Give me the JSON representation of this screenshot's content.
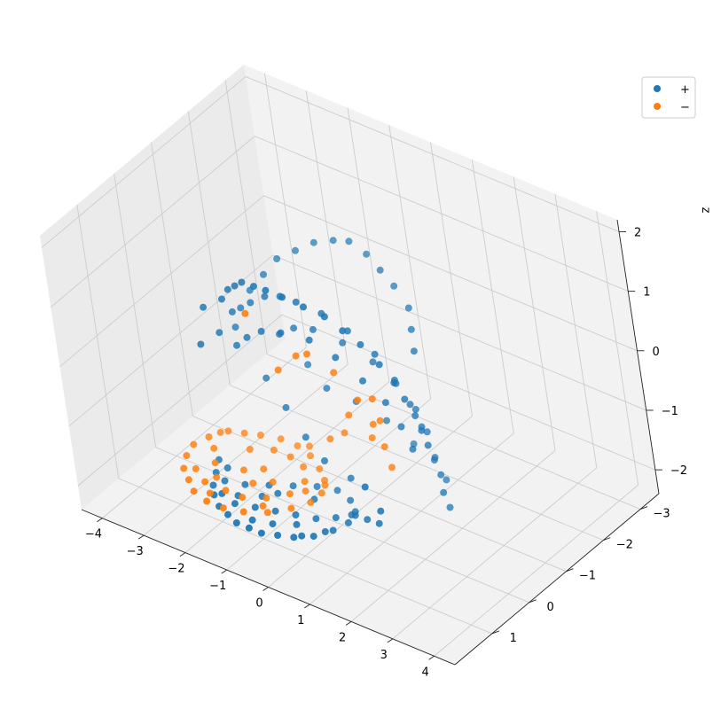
{
  "chart_data": {
    "type": "scatter",
    "projection": "3d",
    "title": "",
    "xlabel": "",
    "ylabel": "",
    "zlabel": "z",
    "xlim": [
      -4.5,
      4.5
    ],
    "ylim": [
      -3.5,
      2
    ],
    "zlim": [
      -2.4,
      2.2
    ],
    "x_ticks": [
      -4,
      -3,
      -2,
      -1,
      0,
      1,
      2,
      3,
      4
    ],
    "y_ticks": [
      -3,
      -2,
      -1,
      0,
      1
    ],
    "z_ticks": [
      -2,
      -1,
      0,
      1,
      2
    ],
    "x_tick_labels": [
      "−4",
      "−3",
      "−2",
      "−1",
      "0",
      "1",
      "2",
      "3",
      "4"
    ],
    "y_tick_labels": [
      "−3",
      "−2",
      "−1",
      "0",
      "1"
    ],
    "z_tick_labels": [
      "−2",
      "−1",
      "0",
      "1",
      "2"
    ],
    "grid": true,
    "legend_position": "top-right",
    "series": [
      {
        "name": "+",
        "color": "#1f77b4",
        "points": [
          [
            -2.6,
            0.3,
            -1.9
          ],
          [
            -2.4,
            0.6,
            -1.9
          ],
          [
            -2.2,
            0.9,
            -1.9
          ],
          [
            -2.0,
            1.1,
            -1.9
          ],
          [
            -1.7,
            1.3,
            -1.9
          ],
          [
            -1.4,
            1.4,
            -1.9
          ],
          [
            -1.1,
            1.5,
            -1.9
          ],
          [
            -0.8,
            1.5,
            -1.9
          ],
          [
            -0.5,
            1.5,
            -1.9
          ],
          [
            -0.2,
            1.4,
            -1.9
          ],
          [
            0.1,
            1.3,
            -1.9
          ],
          [
            0.4,
            1.1,
            -1.9
          ],
          [
            0.6,
            0.8,
            -1.9
          ],
          [
            0.7,
            0.5,
            -1.9
          ],
          [
            0.6,
            0.2,
            -1.9
          ],
          [
            0.3,
            0.0,
            -1.9
          ],
          [
            -0.1,
            -0.1,
            -1.9
          ],
          [
            -0.5,
            0.0,
            -1.9
          ],
          [
            -0.9,
            0.2,
            -1.9
          ],
          [
            -1.3,
            0.4,
            -1.9
          ],
          [
            -1.7,
            0.6,
            -1.9
          ],
          [
            -2.1,
            0.7,
            -1.9
          ],
          [
            -1.9,
            1.0,
            -1.9
          ],
          [
            -1.5,
            1.1,
            -1.9
          ],
          [
            -1.1,
            1.0,
            -1.9
          ],
          [
            -0.7,
            0.9,
            -1.9
          ],
          [
            -0.3,
            0.8,
            -1.9
          ],
          [
            0.1,
            0.7,
            -1.9
          ],
          [
            0.4,
            0.5,
            -1.9
          ],
          [
            -0.5,
            1.2,
            -1.9
          ],
          [
            -1.2,
            0.7,
            -1.9
          ],
          [
            -2.3,
            0.4,
            -1.9
          ],
          [
            0.5,
            0.9,
            -1.9
          ],
          [
            0.2,
            1.2,
            -1.9
          ],
          [
            -0.9,
            1.3,
            -1.9
          ],
          [
            -1.6,
            0.9,
            -1.9
          ],
          [
            -0.3,
            0.3,
            -1.9
          ],
          [
            0.6,
            0.3,
            -1.9
          ],
          [
            -1.0,
            0.5,
            -1.9
          ],
          [
            -0.1,
            1.0,
            -1.9
          ],
          [
            -2.2,
            0.2,
            0.3
          ],
          [
            -2.4,
            0.5,
            0.2
          ],
          [
            -2.0,
            0.0,
            0.6
          ],
          [
            -2.3,
            0.4,
            0.8
          ],
          [
            -1.9,
            0.3,
            1.0
          ],
          [
            -1.6,
            0.4,
            1.3
          ],
          [
            -1.3,
            0.5,
            1.5
          ],
          [
            -1.0,
            0.6,
            1.7
          ],
          [
            -0.6,
            0.7,
            1.8
          ],
          [
            -0.2,
            0.8,
            1.9
          ],
          [
            0.2,
            0.8,
            1.9
          ],
          [
            0.6,
            0.7,
            1.8
          ],
          [
            1.0,
            0.6,
            1.7
          ],
          [
            1.3,
            0.5,
            1.5
          ],
          [
            1.6,
            0.4,
            1.3
          ],
          [
            1.9,
            0.3,
            1.0
          ],
          [
            2.1,
            0.2,
            0.7
          ],
          [
            2.2,
            0.1,
            0.4
          ],
          [
            2.3,
            0.0,
            0.1
          ],
          [
            2.3,
            -0.1,
            -0.2
          ],
          [
            2.3,
            -0.2,
            -0.5
          ],
          [
            2.3,
            -0.3,
            -0.8
          ],
          [
            2.3,
            -0.4,
            -1.1
          ],
          [
            2.3,
            -0.4,
            -1.4
          ],
          [
            2.3,
            -0.5,
            -1.7
          ],
          [
            2.2,
            -0.3,
            1.0
          ],
          [
            2.0,
            -0.5,
            1.2
          ],
          [
            1.8,
            -0.7,
            1.4
          ],
          [
            1.4,
            -0.8,
            1.6
          ],
          [
            1.0,
            -0.9,
            1.7
          ],
          [
            0.6,
            -1.0,
            1.8
          ],
          [
            0.2,
            -1.0,
            1.9
          ],
          [
            -0.2,
            -1.0,
            1.8
          ],
          [
            -0.6,
            -0.9,
            1.7
          ],
          [
            -1.0,
            -0.8,
            1.5
          ],
          [
            -1.4,
            -0.7,
            1.3
          ],
          [
            -1.7,
            -0.6,
            1.0
          ],
          [
            -2.0,
            -0.5,
            0.7
          ],
          [
            -2.2,
            -0.4,
            0.4
          ],
          [
            -2.3,
            -0.3,
            0.1
          ],
          [
            -1.5,
            0.0,
            0.9
          ],
          [
            -1.0,
            0.1,
            1.2
          ],
          [
            -0.5,
            0.2,
            1.4
          ],
          [
            0.0,
            0.3,
            1.5
          ],
          [
            0.5,
            0.2,
            1.4
          ],
          [
            1.0,
            0.1,
            1.2
          ],
          [
            1.5,
            0.0,
            0.9
          ],
          [
            1.8,
            -0.1,
            0.5
          ],
          [
            2.0,
            -0.2,
            0.1
          ],
          [
            2.1,
            -0.3,
            -0.3
          ],
          [
            -1.8,
            0.2,
            0.2
          ],
          [
            -1.4,
            0.3,
            0.5
          ],
          [
            -0.9,
            0.4,
            0.8
          ],
          [
            -0.3,
            0.5,
            1.0
          ],
          [
            0.3,
            0.4,
            1.0
          ],
          [
            0.8,
            0.3,
            0.8
          ],
          [
            1.3,
            0.2,
            0.5
          ],
          [
            1.7,
            0.1,
            0.2
          ],
          [
            1.9,
            0.0,
            -0.2
          ],
          [
            2.0,
            -0.1,
            -0.6
          ],
          [
            -1.2,
            -0.3,
            0.3
          ],
          [
            -0.7,
            -0.2,
            0.6
          ],
          [
            -0.1,
            -0.1,
            0.8
          ],
          [
            0.5,
            -0.2,
            0.7
          ],
          [
            1.1,
            -0.3,
            0.5
          ],
          [
            1.5,
            -0.4,
            0.2
          ],
          [
            1.8,
            -0.5,
            -0.2
          ],
          [
            1.9,
            -0.6,
            -0.6
          ],
          [
            2.0,
            -0.6,
            -1.0
          ],
          [
            2.1,
            -0.7,
            -1.4
          ],
          [
            1.6,
            0.6,
            -1.6
          ],
          [
            1.2,
            0.5,
            -1.7
          ],
          [
            0.8,
            0.4,
            -1.8
          ],
          [
            1.9,
            0.8,
            -1.2
          ],
          [
            1.7,
            0.9,
            -0.8
          ],
          [
            -0.8,
            -0.5,
            -0.2
          ],
          [
            -0.3,
            -0.4,
            -0.4
          ],
          [
            0.3,
            -0.5,
            -0.5
          ],
          [
            0.9,
            -0.6,
            -0.7
          ],
          [
            1.4,
            -0.7,
            -1.0
          ],
          [
            -1.6,
            -0.2,
            -0.5
          ],
          [
            -1.1,
            -0.1,
            -0.8
          ],
          [
            -0.6,
            0.0,
            -1.1
          ],
          [
            -0.1,
            0.1,
            -1.3
          ],
          [
            0.4,
            0.0,
            -1.5
          ]
        ]
      },
      {
        "name": "−",
        "color": "#ff7f0e",
        "points": [
          [
            -3.0,
            -0.4,
            -1.9
          ],
          [
            -3.2,
            -0.1,
            -1.9
          ],
          [
            -3.3,
            0.2,
            -1.9
          ],
          [
            -3.2,
            0.5,
            -1.9
          ],
          [
            -3.0,
            0.8,
            -1.9
          ],
          [
            -2.7,
            1.0,
            -1.9
          ],
          [
            -2.4,
            1.2,
            -1.9
          ],
          [
            -2.0,
            1.3,
            -1.9
          ],
          [
            -1.6,
            1.3,
            -1.9
          ],
          [
            -1.2,
            1.2,
            -1.9
          ],
          [
            -0.8,
            1.0,
            -1.9
          ],
          [
            -0.5,
            0.7,
            -1.9
          ],
          [
            -0.3,
            0.4,
            -1.9
          ],
          [
            -0.3,
            0.1,
            -1.9
          ],
          [
            -0.5,
            -0.2,
            -1.9
          ],
          [
            -0.8,
            -0.4,
            -1.9
          ],
          [
            -1.2,
            -0.6,
            -1.9
          ],
          [
            -1.6,
            -0.7,
            -1.9
          ],
          [
            -2.0,
            -0.7,
            -1.9
          ],
          [
            -2.4,
            -0.6,
            -1.9
          ],
          [
            -2.7,
            -0.5,
            -1.9
          ],
          [
            -2.9,
            0.1,
            -1.9
          ],
          [
            -2.6,
            0.4,
            -1.9
          ],
          [
            -2.3,
            0.7,
            -1.9
          ],
          [
            -1.9,
            0.9,
            -1.9
          ],
          [
            -1.5,
            0.9,
            -1.9
          ],
          [
            -1.1,
            0.7,
            -1.9
          ],
          [
            -0.8,
            0.4,
            -1.9
          ],
          [
            -0.8,
            0.0,
            -1.9
          ],
          [
            -1.1,
            -0.3,
            -1.9
          ],
          [
            -1.5,
            -0.4,
            -1.9
          ],
          [
            -1.9,
            -0.4,
            -1.9
          ],
          [
            -2.3,
            -0.2,
            -1.9
          ],
          [
            -2.0,
            0.3,
            -1.9
          ],
          [
            -1.6,
            0.5,
            -1.9
          ],
          [
            -1.3,
            0.3,
            -1.9
          ],
          [
            -1.7,
            0.1,
            -1.9
          ],
          [
            -2.4,
            0.9,
            -1.9
          ],
          [
            -2.8,
            0.7,
            -1.9
          ],
          [
            -1.0,
            0.9,
            -1.9
          ],
          [
            -0.6,
            0.2,
            -1.9
          ],
          [
            -3.1,
            -0.3,
            -1.9
          ],
          [
            -1.4,
            -0.8,
            -1.9
          ],
          [
            -0.4,
            -0.1,
            -1.9
          ],
          [
            -2.1,
            1.1,
            -1.9
          ],
          [
            -0.6,
            1.0,
            1.5
          ],
          [
            0.4,
            0.6,
            0.9
          ],
          [
            0.8,
            0.4,
            0.6
          ],
          [
            1.2,
            0.3,
            0.2
          ],
          [
            1.4,
            0.2,
            -0.2
          ],
          [
            1.5,
            0.1,
            -0.6
          ],
          [
            1.5,
            0.0,
            -1.0
          ],
          [
            0.0,
            0.5,
            0.7
          ],
          [
            -0.4,
            0.6,
            0.4
          ],
          [
            0.7,
            0.1,
            -0.3
          ],
          [
            1.0,
            -0.1,
            -0.7
          ],
          [
            0.2,
            -0.2,
            -0.9
          ],
          [
            -0.3,
            -0.3,
            -1.2
          ],
          [
            1.8,
            0.5,
            0.5
          ],
          [
            1.7,
            0.3,
            0.0
          ]
        ]
      }
    ]
  }
}
